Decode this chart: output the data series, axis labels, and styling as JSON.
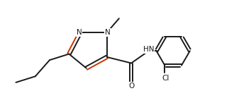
{
  "bg_color": "#ffffff",
  "line_color": "#1a1a1a",
  "dbl_color": "#cc3300",
  "text_color": "#1a1a1a",
  "lw": 1.4,
  "fs": 7.5,
  "xlim": [
    0.2,
    11.0
  ],
  "ylim": [
    2.8,
    8.0
  ],
  "figsize": [
    3.3,
    1.56
  ],
  "dpi": 100
}
